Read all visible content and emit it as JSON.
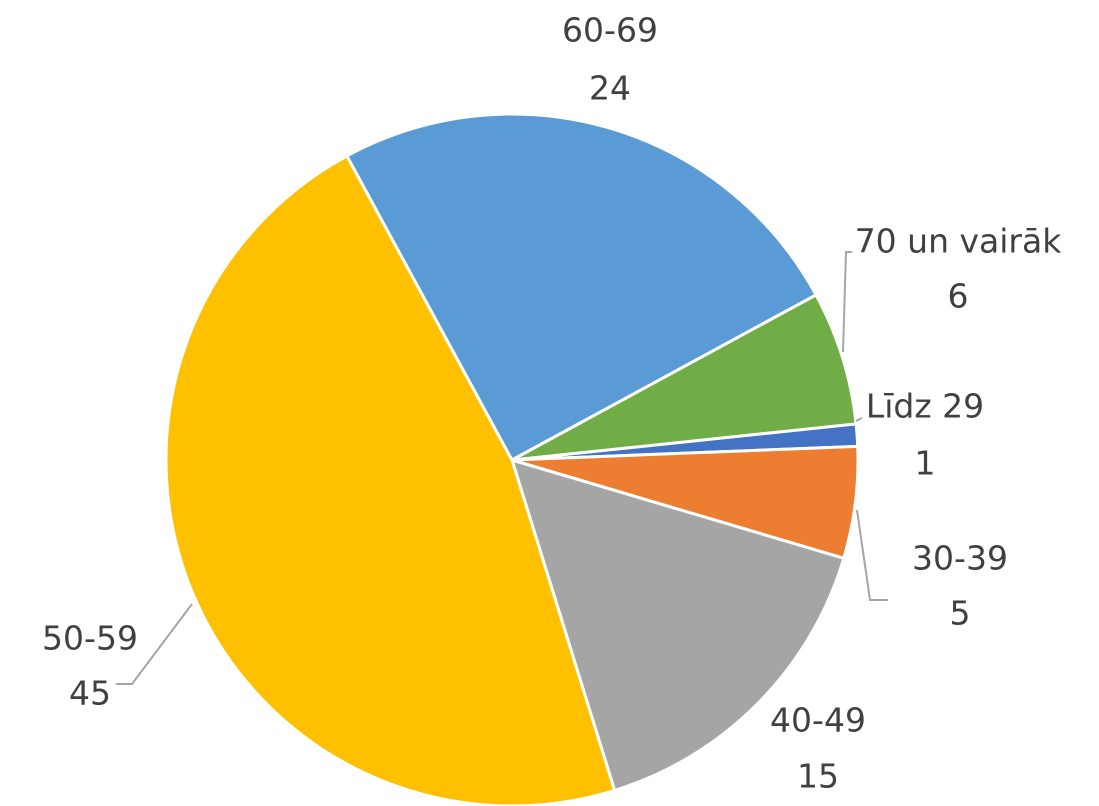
{
  "chart_data": {
    "type": "pie",
    "categories": [
      "Līdz 29",
      "30-39",
      "40-49",
      "50-59",
      "60-69",
      "70 un vairāk"
    ],
    "values": [
      1,
      5,
      15,
      45,
      24,
      6
    ],
    "colors": [
      "#4472c4",
      "#ed7d31",
      "#a5a5a5",
      "#ffc000",
      "#5b9bd5",
      "#70ad47"
    ]
  }
}
